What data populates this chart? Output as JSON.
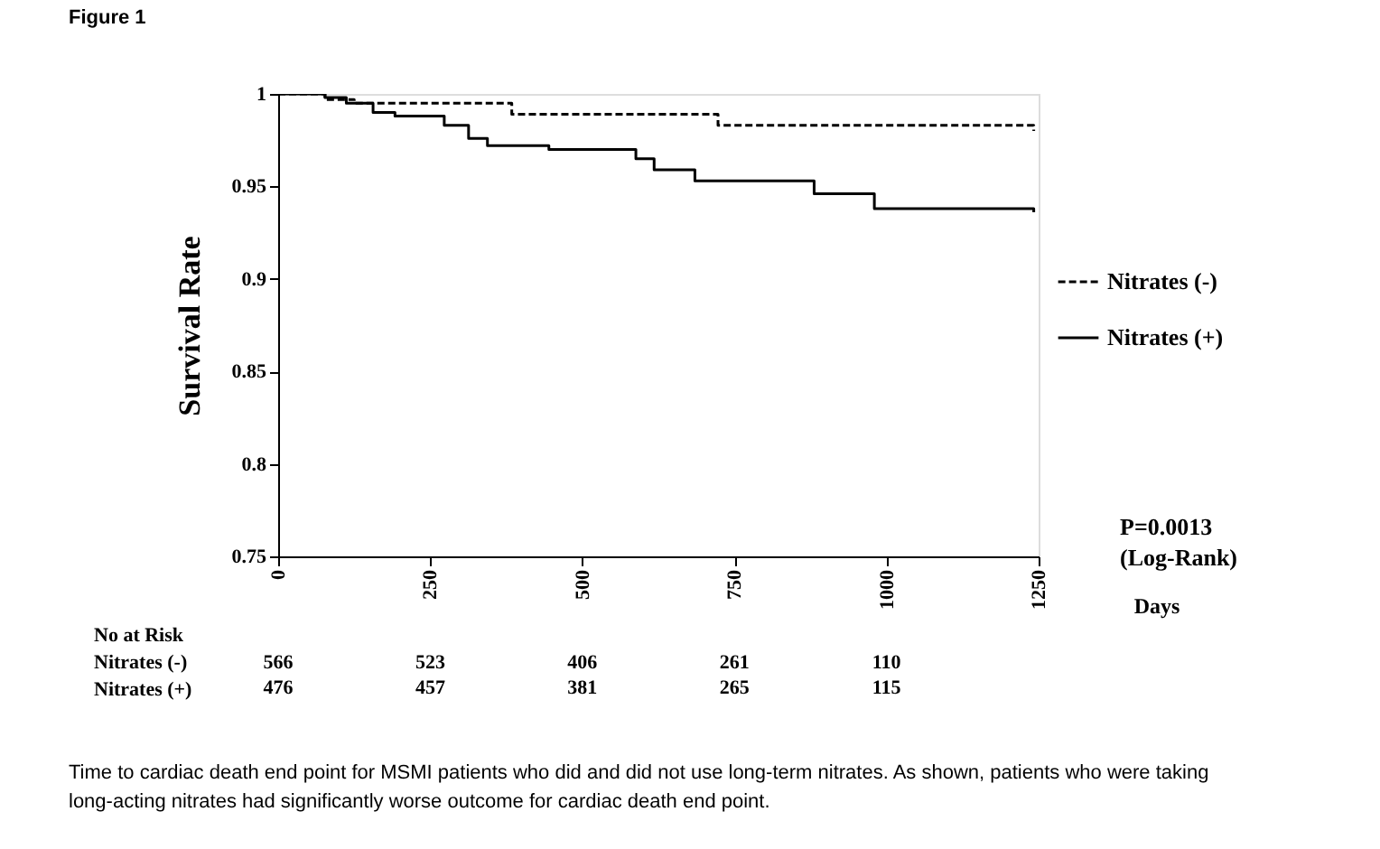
{
  "chart_data": {
    "type": "step",
    "title": "Figure 1",
    "xlabel": "Days",
    "ylabel": "Survival Rate",
    "xlim": [
      0,
      1250
    ],
    "xticks": [
      0,
      250,
      500,
      750,
      1000,
      1250
    ],
    "ylim": [
      0.75,
      1
    ],
    "yticks": [
      0.75,
      0.8,
      0.85,
      0.9,
      0.95,
      1
    ],
    "grid": false,
    "legend": "right",
    "marker": "none",
    "series": [
      {
        "name": "Nitrates (-)",
        "color": "#000000",
        "line_style": "dashed",
        "x": [
          0,
          77,
          125,
          384,
          723,
          1242
        ],
        "values": [
          1,
          0.997,
          0.995,
          0.989,
          0.983,
          0.98
        ]
      },
      {
        "name": "Nitrates (+)",
        "color": "#000000",
        "line_style": "solid",
        "x": [
          0,
          77,
          112,
          156,
          192,
          273,
          313,
          344,
          445,
          588,
          618,
          685,
          881,
          980,
          1242
        ],
        "values": [
          1,
          0.998,
          0.995,
          0.99,
          0.988,
          0.983,
          0.976,
          0.972,
          0.97,
          0.965,
          0.959,
          0.953,
          0.946,
          0.938,
          0.936
        ]
      }
    ],
    "annotations": [
      "P=0.0013",
      "(Log-Rank)",
      "No at Risk",
      "Nitrates (-)",
      "Nitrates (+)",
      "566",
      "476",
      "523",
      "457",
      "406",
      "381",
      "261",
      "265",
      "110",
      "115",
      "Time to cardiac death end point for MSMI patients who did and did not use long-term nitrates. As shown, patients who were taking",
      "long-acting nitrates had significantly worse outcome for cardiac death end point."
    ]
  }
}
